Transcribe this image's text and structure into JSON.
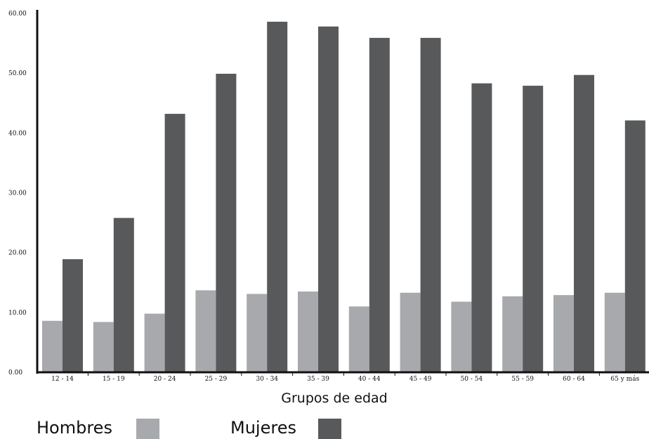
{
  "chart_data": {
    "type": "bar",
    "xlabel": "Grupos de edad",
    "ylabel": "",
    "ylim": [
      0,
      60
    ],
    "yticks": [
      "0.00",
      "10.00",
      "20.00",
      "30.00",
      "40.00",
      "50.00",
      "60.00"
    ],
    "categories": [
      "12 - 14",
      "15 - 19",
      "20 - 24",
      "25 - 29",
      "30 - 34",
      "35 - 39",
      "40 - 44",
      "45 - 49",
      "50 - 54",
      "55 - 59",
      "60 - 64",
      "65 y más"
    ],
    "series": [
      {
        "name": "Hombres",
        "color": "#a7a9ac",
        "values": [
          8.6,
          8.4,
          9.8,
          13.7,
          13.1,
          13.5,
          11.0,
          13.3,
          11.8,
          12.7,
          12.9,
          13.3
        ]
      },
      {
        "name": "Mujeres",
        "color": "#58595b",
        "values": [
          18.9,
          25.8,
          43.2,
          49.9,
          58.6,
          57.8,
          55.9,
          55.9,
          48.3,
          47.9,
          49.7,
          42.1
        ]
      }
    ],
    "legend_position": "bottom-left",
    "grid": false
  }
}
